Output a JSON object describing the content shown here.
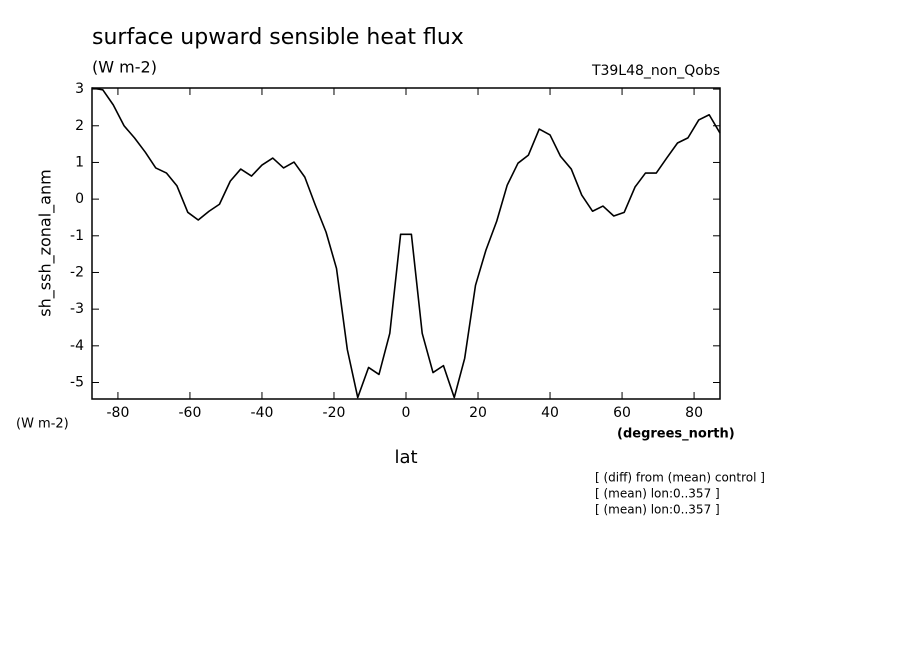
{
  "chart_data": {
    "type": "line",
    "title": "surface upward sensible heat flux",
    "subtitle": "(W m-2)",
    "run_label": "T39L48_non_Qobs",
    "y_label": "sh_ssh_zonal_anm",
    "y_units": "(W m-2)",
    "x_units": "(degrees_north)",
    "x_label": "lat",
    "notes": [
      "[ (diff) from (mean) control ]",
      "[ (mean) lon:0..357 ]",
      "[ (mean) lon:0..357 ]"
    ],
    "x": [
      -87.2,
      -84.2,
      -81.3,
      -78.3,
      -75.4,
      -72.4,
      -69.5,
      -66.5,
      -63.6,
      -60.6,
      -57.7,
      -54.7,
      -51.8,
      -48.8,
      -45.9,
      -42.9,
      -40.0,
      -37.0,
      -34.0,
      -31.1,
      -28.1,
      -25.2,
      -22.2,
      -19.3,
      -16.3,
      -13.4,
      -10.4,
      -7.5,
      -4.5,
      -1.5,
      1.5,
      4.5,
      7.5,
      10.4,
      13.4,
      16.3,
      19.3,
      22.2,
      25.2,
      28.1,
      31.1,
      34.0,
      37.0,
      40.0,
      42.9,
      45.9,
      48.8,
      51.8,
      54.7,
      57.7,
      60.6,
      63.6,
      66.5,
      69.5,
      72.4,
      75.4,
      78.3,
      81.3,
      84.2,
      87.2
    ],
    "series": [
      {
        "name": "sh_ssh_zonal_anm",
        "color": "#000000",
        "values": [
          3.03,
          2.98,
          2.57,
          2.0,
          1.67,
          1.28,
          0.85,
          0.71,
          0.36,
          -0.36,
          -0.57,
          -0.33,
          -0.14,
          0.49,
          0.82,
          0.63,
          0.93,
          1.12,
          0.85,
          1.01,
          0.6,
          -0.16,
          -0.9,
          -1.89,
          -4.1,
          -5.41,
          -4.59,
          -4.78,
          -3.66,
          -0.96,
          -0.96,
          -3.66,
          -4.73,
          -4.54,
          -5.41,
          -4.34,
          -2.35,
          -1.39,
          -0.6,
          0.38,
          0.98,
          1.2,
          1.91,
          1.75,
          1.17,
          0.82,
          0.11,
          -0.33,
          -0.19,
          -0.46,
          -0.36,
          0.33,
          0.71,
          0.71,
          1.12,
          1.53,
          1.67,
          2.16,
          2.3,
          1.8
        ]
      }
    ],
    "xlim": [
      -87.2,
      87.2
    ],
    "ylim": [
      -5.45,
      3.03
    ],
    "xticks": [
      -80,
      -60,
      -40,
      -20,
      0,
      20,
      40,
      60,
      80
    ],
    "yticks": [
      -5,
      -4,
      -3,
      -2,
      -1,
      0,
      1,
      2,
      3
    ],
    "grid": false
  }
}
